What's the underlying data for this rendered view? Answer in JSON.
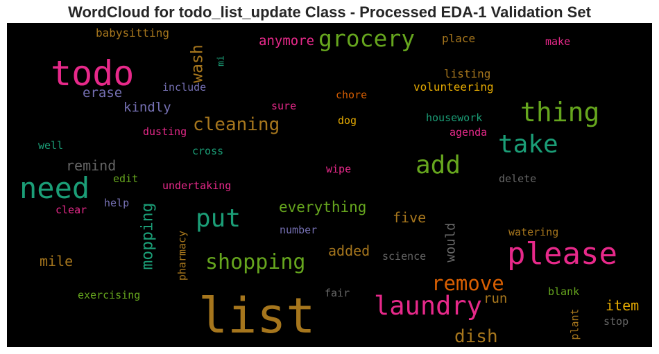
{
  "title": "WordCloud for todo_list_update Class - Processed EDA-1 Validation Set",
  "colors": {
    "background": "#000000",
    "palette": [
      "#e7298a",
      "#66a61e",
      "#1b9e77",
      "#a6761d",
      "#d95f02",
      "#7570b3",
      "#e6ab02",
      "#666666"
    ]
  },
  "words": [
    {
      "text": "list",
      "color": "#a6761d"
    },
    {
      "text": "todo",
      "color": "#e7298a"
    },
    {
      "text": "please",
      "color": "#e7298a"
    },
    {
      "text": "need",
      "color": "#1b9e77"
    },
    {
      "text": "thing",
      "color": "#66a61e"
    },
    {
      "text": "laundry",
      "color": "#e7298a"
    },
    {
      "text": "add",
      "color": "#66a61e"
    },
    {
      "text": "take",
      "color": "#1b9e77"
    },
    {
      "text": "put",
      "color": "#1b9e77"
    },
    {
      "text": "grocery",
      "color": "#66a61e"
    },
    {
      "text": "shopping",
      "color": "#66a61e"
    },
    {
      "text": "remove",
      "color": "#d95f02"
    },
    {
      "text": "cleaning",
      "color": "#a6761d"
    },
    {
      "text": "mopping",
      "color": "#1b9e77"
    },
    {
      "text": "wash",
      "color": "#a6761d"
    },
    {
      "text": "dish",
      "color": "#a6761d"
    },
    {
      "text": "everything",
      "color": "#66a61e"
    },
    {
      "text": "remind",
      "color": "#666666"
    },
    {
      "text": "anymore",
      "color": "#e7298a"
    },
    {
      "text": "kindly",
      "color": "#7570b3"
    },
    {
      "text": "erase",
      "color": "#7570b3"
    },
    {
      "text": "added",
      "color": "#a6761d"
    },
    {
      "text": "five",
      "color": "#a6761d"
    },
    {
      "text": "would",
      "color": "#666666"
    },
    {
      "text": "mile",
      "color": "#a6761d"
    },
    {
      "text": "item",
      "color": "#e6ab02"
    },
    {
      "text": "run",
      "color": "#a6761d"
    },
    {
      "text": "babysitting",
      "color": "#a6761d"
    },
    {
      "text": "volunteering",
      "color": "#e6ab02"
    },
    {
      "text": "listing",
      "color": "#a6761d"
    },
    {
      "text": "place",
      "color": "#a6761d"
    },
    {
      "text": "make",
      "color": "#e7298a"
    },
    {
      "text": "include",
      "color": "#7570b3"
    },
    {
      "text": "chore",
      "color": "#d95f02"
    },
    {
      "text": "sure",
      "color": "#e7298a"
    },
    {
      "text": "housework",
      "color": "#1b9e77"
    },
    {
      "text": "agenda",
      "color": "#e7298a"
    },
    {
      "text": "dog",
      "color": "#e6ab02"
    },
    {
      "text": "dusting",
      "color": "#e7298a"
    },
    {
      "text": "well",
      "color": "#1b9e77"
    },
    {
      "text": "cross",
      "color": "#1b9e77"
    },
    {
      "text": "wipe",
      "color": "#e7298a"
    },
    {
      "text": "delete",
      "color": "#666666"
    },
    {
      "text": "edit",
      "color": "#66a61e"
    },
    {
      "text": "undertaking",
      "color": "#e7298a"
    },
    {
      "text": "help",
      "color": "#7570b3"
    },
    {
      "text": "clear",
      "color": "#e7298a"
    },
    {
      "text": "number",
      "color": "#7570b3"
    },
    {
      "text": "watering",
      "color": "#a6761d"
    },
    {
      "text": "science",
      "color": "#666666"
    },
    {
      "text": "pharmacy",
      "color": "#a6761d"
    },
    {
      "text": "exercising",
      "color": "#66a61e"
    },
    {
      "text": "fair",
      "color": "#666666"
    },
    {
      "text": "blank",
      "color": "#66a61e"
    },
    {
      "text": "plant",
      "color": "#a6761d"
    },
    {
      "text": "stop",
      "color": "#666666"
    },
    {
      "text": "mi",
      "color": "#1b9e77"
    }
  ]
}
